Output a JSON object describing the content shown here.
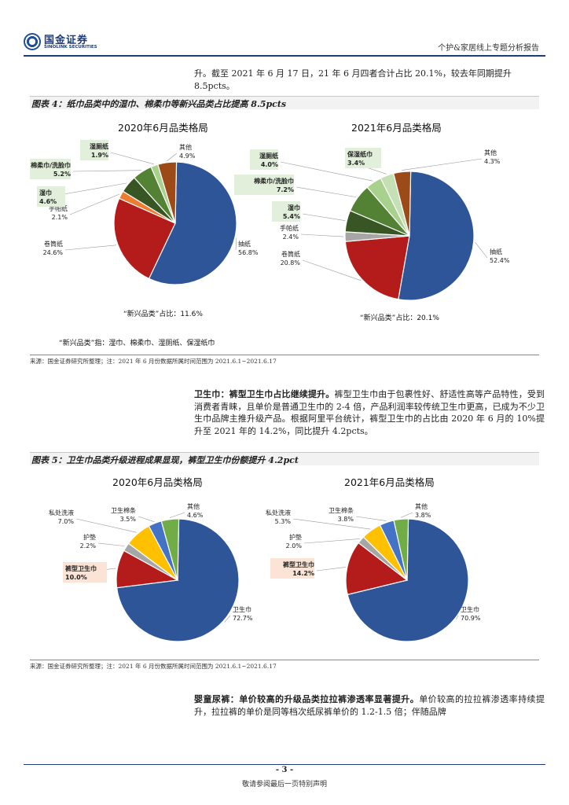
{
  "header": {
    "logo_cn": "国金证券",
    "logo_en": "SINOLINK SECURITIES",
    "title": "个护&家居线上专题分析报告"
  },
  "intro_text": "升。截至 2021 年 6 月 17 日，21 年 6 月四者合计占比 20.1%，较去年同期提升 8.5pcts。",
  "fig4": {
    "caption": "图表 4：纸巾品类中的湿巾、棉柔巾等新兴品类占比提高 8.5pcts",
    "note_2020": "“新兴品类”占比：11.6%",
    "note_2021": "“新兴品类”占比：20.1%",
    "definition": "“新兴品类”指：湿巾、棉柔巾、湿厕纸、保湿纸巾",
    "source": "来源：国金证券研究所整理；注：2021 年 6 月份数据所属时间范围为 2021.6.1~2021.6.17"
  },
  "para_sanitary": {
    "lead": "卫生巾：裤型卫生巾占比继续提升。",
    "body": "裤型卫生巾由于包裹性好、舒适性高等产品特性，受到消费者青睐，且单价是普通卫生巾的 2-4 倍，产品利润率较传统卫生巾更高，已成为不少卫生巾品牌主推升级产品。根据阿里平台统计，裤型卫生巾的占比由 2020 年 6 月的 10%提升至 2021 年的 14.2%，同比提升 4.2pcts。"
  },
  "fig5": {
    "caption": "图表 5：卫生巾品类升级进程成果显现，裤型卫生巾份额提升 4.2pct",
    "source": "来源：国金证券研究所整理；注：2021 年 6 月份数据所属时间范围为 2021.6.1~2021.6.17"
  },
  "para_diaper": {
    "lead": "婴童尿裤：单价较高的升级品类拉拉裤渗透率显著提升。",
    "body": "单价较高的拉拉裤渗透率持续提升，拉拉裤的单价是同等档次纸尿裤单价的 1.2-1.5 倍；伴随品牌"
  },
  "footer": {
    "page": "- 3 -",
    "note": "敬请参阅最后一页特别声明"
  },
  "chart_data": [
    {
      "type": "pie",
      "title": "2020年6月品类格局",
      "slices": [
        {
          "label": "抽纸",
          "value": 56.8,
          "color": "#2e5597"
        },
        {
          "label": "卷筒纸",
          "value": 24.6,
          "color": "#b41c1c"
        },
        {
          "label": "手帕纸",
          "value": 2.1,
          "color": "#ed7d31"
        },
        {
          "label": "湿巾",
          "value": 4.6,
          "color": "#375623"
        },
        {
          "label": "棉柔巾/洗脸巾",
          "value": 5.2,
          "color": "#548235"
        },
        {
          "label": "湿厕纸",
          "value": 1.9,
          "color": "#a9d18e"
        },
        {
          "label": "其他",
          "value": 4.9,
          "color": "#9c4a17"
        }
      ],
      "highlighted": [
        "湿巾",
        "棉柔巾/洗脸巾",
        "湿厕纸"
      ]
    },
    {
      "type": "pie",
      "title": "2021年6月品类格局",
      "slices": [
        {
          "label": "抽纸",
          "value": 52.4,
          "color": "#2e5597"
        },
        {
          "label": "卷筒纸",
          "value": 20.8,
          "color": "#b41c1c"
        },
        {
          "label": "手帕纸",
          "value": 2.4,
          "color": "#a6a6a6"
        },
        {
          "label": "湿巾",
          "value": 5.4,
          "color": "#375623"
        },
        {
          "label": "棉柔巾/洗脸巾",
          "value": 7.2,
          "color": "#548235"
        },
        {
          "label": "湿厕纸",
          "value": 4.0,
          "color": "#a9d18e"
        },
        {
          "label": "保湿纸巾",
          "value": 3.4,
          "color": "#c5e0b4"
        },
        {
          "label": "其他",
          "value": 4.3,
          "color": "#9c4a17"
        }
      ],
      "highlighted": [
        "湿巾",
        "棉柔巾/洗脸巾",
        "湿厕纸",
        "保湿纸巾"
      ]
    },
    {
      "type": "pie",
      "title": "2020年6月品类格局",
      "slices": [
        {
          "label": "卫生巾",
          "value": 72.7,
          "color": "#2e5597"
        },
        {
          "label": "裤型卫生巾",
          "value": 10.0,
          "color": "#b41c1c"
        },
        {
          "label": "护垫",
          "value": 2.2,
          "color": "#a6a6a6"
        },
        {
          "label": "私处洗液",
          "value": 7.0,
          "color": "#ffc000"
        },
        {
          "label": "卫生棉条",
          "value": 3.5,
          "color": "#4472c4"
        },
        {
          "label": "其他",
          "value": 4.6,
          "color": "#70ad47"
        }
      ],
      "highlighted": [
        "裤型卫生巾"
      ]
    },
    {
      "type": "pie",
      "title": "2021年6月品类格局",
      "slices": [
        {
          "label": "卫生巾",
          "value": 70.9,
          "color": "#2e5597"
        },
        {
          "label": "裤型卫生巾",
          "value": 14.2,
          "color": "#b41c1c"
        },
        {
          "label": "护垫",
          "value": 2.0,
          "color": "#a6a6a6"
        },
        {
          "label": "私处洗液",
          "value": 5.3,
          "color": "#ffc000"
        },
        {
          "label": "卫生棉条",
          "value": 3.8,
          "color": "#4472c4"
        },
        {
          "label": "其他",
          "value": 3.8,
          "color": "#70ad47"
        }
      ],
      "highlighted": [
        "裤型卫生巾"
      ]
    }
  ]
}
